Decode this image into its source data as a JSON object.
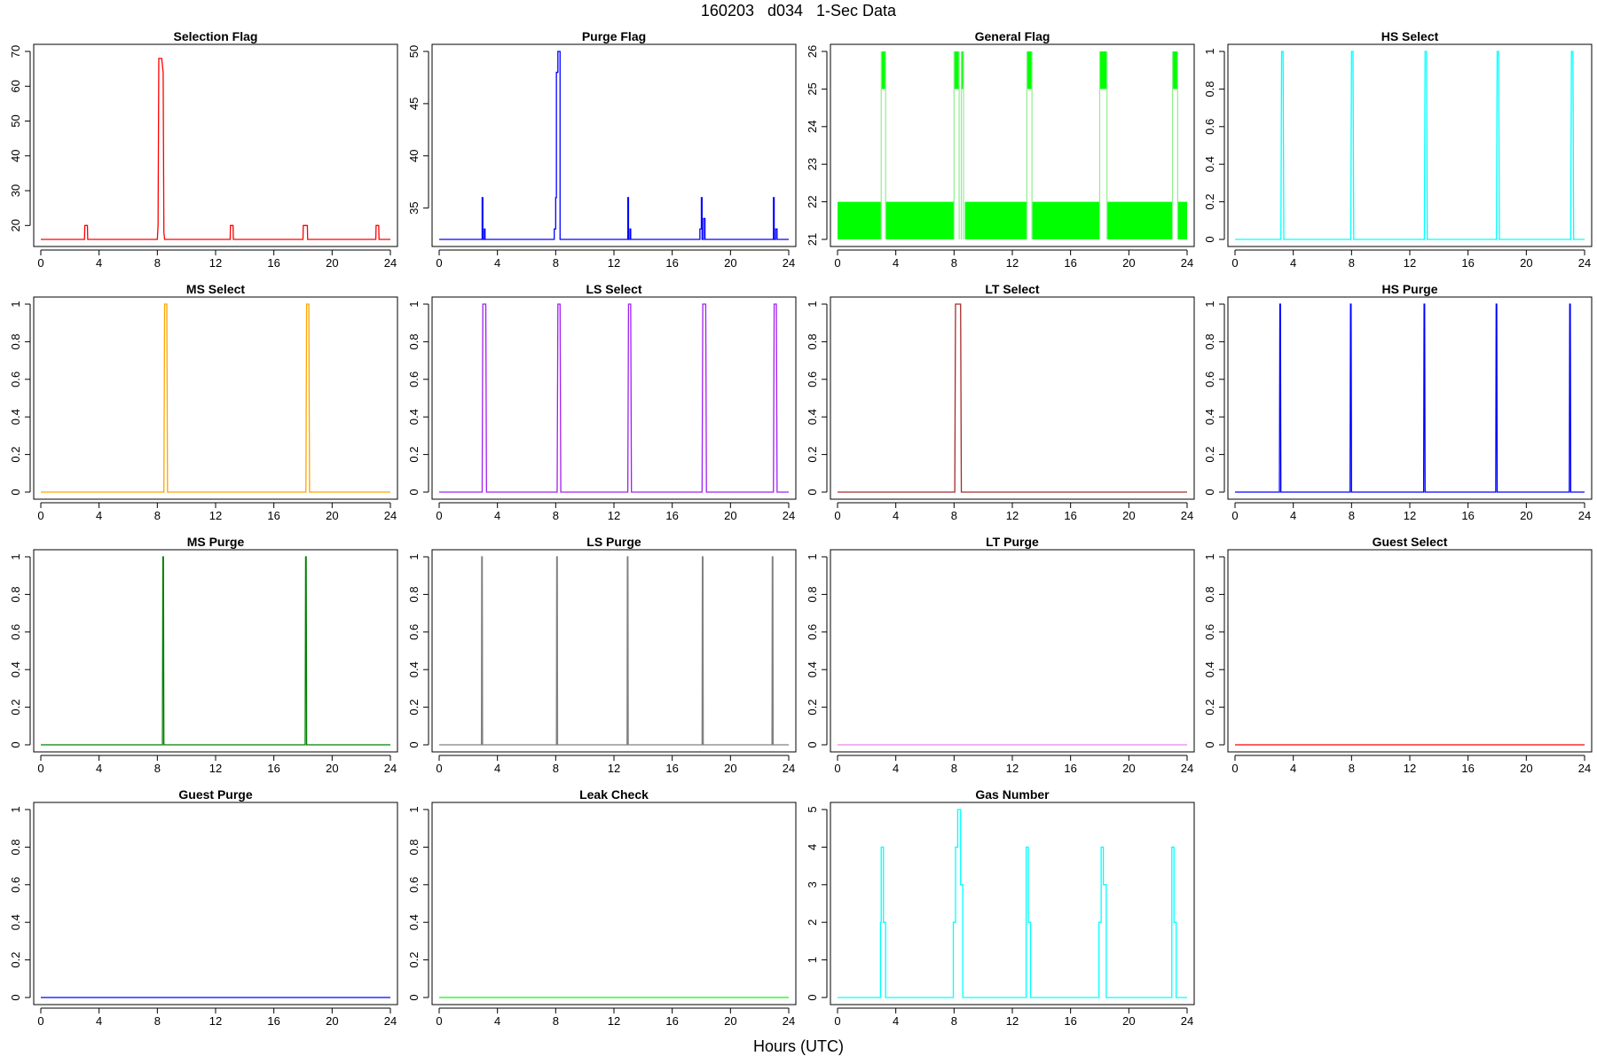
{
  "figure": {
    "title": "160203   d034   1-Sec Data",
    "xlabel": "Hours (UTC)"
  },
  "chart_data": [
    {
      "type": "line",
      "title": "Selection Flag",
      "color": "#ff0000",
      "x": [
        0,
        3,
        3.02,
        3.2,
        3.22,
        8,
        8.05,
        8.1,
        8.3,
        8.4,
        8.45,
        8.5,
        13,
        13.02,
        13.2,
        13.22,
        18,
        18.02,
        18.3,
        18.32,
        23,
        23.02,
        23.2,
        23.22,
        24
      ],
      "y": [
        16,
        16,
        20,
        20,
        16,
        16,
        20,
        68,
        68,
        64,
        18,
        16,
        16,
        20,
        20,
        16,
        16,
        20,
        20,
        16,
        16,
        20,
        20,
        16,
        16
      ],
      "ylim": [
        16,
        70
      ],
      "yticks": [
        20,
        30,
        40,
        50,
        60,
        70
      ],
      "xlim": [
        0,
        24
      ],
      "xticks": [
        0,
        4,
        8,
        12,
        16,
        20,
        24
      ]
    },
    {
      "type": "line",
      "title": "Purge Flag",
      "color": "#0000ff",
      "x": [
        0,
        2.95,
        2.95,
        3.0,
        3.0,
        3.1,
        3.1,
        3.15,
        3.15,
        7.9,
        7.9,
        8.0,
        8.0,
        8.05,
        8.05,
        8.15,
        8.15,
        8.3,
        8.3,
        8.5,
        8.5,
        12.95,
        12.95,
        13.0,
        13.0,
        13.1,
        13.1,
        13.15,
        13.15,
        17.9,
        17.9,
        18.0,
        18.0,
        18.05,
        18.05,
        18.15,
        18.15,
        18.25,
        18.25,
        22.95,
        22.95,
        23.0,
        23.0,
        23.1,
        23.1,
        23.2,
        23.2,
        24
      ],
      "y": [
        32,
        32,
        36,
        36,
        32,
        32,
        33,
        33,
        32,
        32,
        33,
        33,
        36,
        36,
        48,
        48,
        50,
        50,
        32,
        32,
        32,
        32,
        36,
        36,
        32,
        32,
        33,
        33,
        32,
        32,
        33,
        33,
        36,
        36,
        32,
        32,
        34,
        34,
        32,
        32,
        36,
        36,
        32,
        32,
        33,
        33,
        32,
        32
      ],
      "ylim": [
        32,
        50
      ],
      "yticks": [
        35,
        40,
        45,
        50
      ],
      "xlim": [
        0,
        24
      ],
      "xticks": [
        0,
        4,
        8,
        12,
        16,
        20,
        24
      ]
    },
    {
      "type": "area",
      "title": "General Flag",
      "color": "#00ff00",
      "line_color": "#90ee90",
      "blocks": [
        [
          0,
          3
        ],
        [
          3.3,
          8
        ],
        [
          8.75,
          13
        ],
        [
          13.35,
          18
        ],
        [
          18.5,
          23
        ],
        [
          23.35,
          24
        ]
      ],
      "block_range": [
        21,
        22
      ],
      "spikes": [
        [
          3,
          3.3
        ],
        [
          8,
          8.35
        ],
        [
          8.5,
          8.65
        ],
        [
          13,
          13.35
        ],
        [
          18,
          18.5
        ],
        [
          23,
          23.35
        ]
      ],
      "spike_range": [
        25,
        26
      ],
      "spike_base": 21,
      "ylim": [
        21,
        26
      ],
      "yticks": [
        21,
        22,
        23,
        24,
        25,
        26
      ],
      "xlim": [
        0,
        24
      ],
      "xticks": [
        0,
        4,
        8,
        12,
        16,
        20,
        24
      ]
    },
    {
      "type": "line",
      "title": "HS Select",
      "color": "#00ffff",
      "x": [
        0,
        3.15,
        3.2,
        3.3,
        3.35,
        7.95,
        8.0,
        8.1,
        8.15,
        13.0,
        13.05,
        13.15,
        13.2,
        17.95,
        18.0,
        18.1,
        18.15,
        23.05,
        23.1,
        23.2,
        23.25,
        24
      ],
      "y": [
        0,
        0,
        1,
        1,
        0,
        0,
        1,
        1,
        0,
        0,
        1,
        1,
        0,
        0,
        1,
        1,
        0,
        0,
        1,
        1,
        0,
        0
      ],
      "ylim": [
        0,
        1
      ],
      "yticks": [
        0,
        0.2,
        0.4,
        0.6,
        0.8,
        1
      ],
      "xlim": [
        0,
        24
      ],
      "xticks": [
        0,
        4,
        8,
        12,
        16,
        20,
        24
      ]
    },
    {
      "type": "line",
      "title": "MS Select",
      "color": "#ffa500",
      "x": [
        0,
        8.45,
        8.5,
        8.65,
        8.7,
        18.2,
        18.25,
        18.4,
        18.45,
        24
      ],
      "y": [
        0,
        0,
        1,
        1,
        0,
        0,
        1,
        1,
        0,
        0
      ],
      "ylim": [
        0,
        1
      ],
      "yticks": [
        0,
        0.2,
        0.4,
        0.6,
        0.8,
        1
      ],
      "xlim": [
        0,
        24
      ],
      "xticks": [
        0,
        4,
        8,
        12,
        16,
        20,
        24
      ]
    },
    {
      "type": "line",
      "title": "LS Select",
      "color": "#a020f0",
      "x": [
        0,
        2.95,
        3.0,
        3.2,
        3.25,
        8.1,
        8.15,
        8.3,
        8.35,
        12.95,
        13.0,
        13.15,
        13.2,
        18.05,
        18.1,
        18.3,
        18.35,
        22.95,
        23.0,
        23.15,
        23.2,
        24
      ],
      "y": [
        0,
        0,
        1,
        1,
        0,
        0,
        1,
        1,
        0,
        0,
        1,
        1,
        0,
        0,
        1,
        1,
        0,
        0,
        1,
        1,
        0,
        0
      ],
      "ylim": [
        0,
        1
      ],
      "yticks": [
        0,
        0.2,
        0.4,
        0.6,
        0.8,
        1
      ],
      "xlim": [
        0,
        24
      ],
      "xticks": [
        0,
        4,
        8,
        12,
        16,
        20,
        24
      ]
    },
    {
      "type": "line",
      "title": "LT Select",
      "color": "#a52a2a",
      "x": [
        0,
        8.05,
        8.1,
        8.45,
        8.5,
        24
      ],
      "y": [
        0,
        0,
        1,
        1,
        0,
        0
      ],
      "ylim": [
        0,
        1
      ],
      "yticks": [
        0,
        0.2,
        0.4,
        0.6,
        0.8,
        1
      ],
      "xlim": [
        0,
        24
      ],
      "xticks": [
        0,
        4,
        8,
        12,
        16,
        20,
        24
      ]
    },
    {
      "type": "line",
      "title": "HS Purge",
      "color": "#0000ff",
      "x": [
        0,
        3.05,
        3.08,
        3.12,
        3.15,
        7.9,
        7.93,
        7.97,
        8.0,
        12.95,
        12.98,
        13.02,
        13.05,
        17.9,
        17.93,
        17.97,
        18.0,
        22.95,
        22.98,
        23.02,
        23.05,
        24
      ],
      "y": [
        0,
        0,
        1,
        1,
        0,
        0,
        1,
        1,
        0,
        0,
        1,
        1,
        0,
        0,
        1,
        1,
        0,
        0,
        1,
        1,
        0,
        0
      ],
      "ylim": [
        0,
        1
      ],
      "yticks": [
        0,
        0.2,
        0.4,
        0.6,
        0.8,
        1
      ],
      "xlim": [
        0,
        24
      ],
      "xticks": [
        0,
        4,
        8,
        12,
        16,
        20,
        24
      ]
    },
    {
      "type": "line",
      "title": "MS Purge",
      "color": "#008000",
      "x": [
        0,
        8.35,
        8.38,
        8.42,
        8.45,
        18.15,
        18.18,
        18.22,
        18.25,
        24
      ],
      "y": [
        0,
        0,
        1,
        1,
        0,
        0,
        1,
        1,
        0,
        0
      ],
      "ylim": [
        0,
        1
      ],
      "yticks": [
        0,
        0.2,
        0.4,
        0.6,
        0.8,
        1
      ],
      "xlim": [
        0,
        24
      ],
      "xticks": [
        0,
        4,
        8,
        12,
        16,
        20,
        24
      ]
    },
    {
      "type": "line",
      "title": "LS Purge",
      "color": "#808080",
      "x": [
        0,
        2.9,
        2.92,
        2.96,
        2.98,
        8.05,
        8.07,
        8.11,
        8.13,
        12.9,
        12.92,
        12.96,
        12.98,
        18.05,
        18.07,
        18.11,
        18.13,
        22.85,
        22.87,
        22.91,
        22.93,
        24
      ],
      "y": [
        0,
        0,
        1,
        1,
        0,
        0,
        1,
        1,
        0,
        0,
        1,
        1,
        0,
        0,
        1,
        1,
        0,
        0,
        1,
        1,
        0,
        0
      ],
      "ylim": [
        0,
        1
      ],
      "yticks": [
        0,
        0.2,
        0.4,
        0.6,
        0.8,
        1
      ],
      "xlim": [
        0,
        24
      ],
      "xticks": [
        0,
        4,
        8,
        12,
        16,
        20,
        24
      ]
    },
    {
      "type": "line",
      "title": "LT Purge",
      "color": "#ee82ee",
      "x": [
        0,
        24
      ],
      "y": [
        0,
        0
      ],
      "ylim": [
        0,
        1
      ],
      "yticks": [
        0,
        0.2,
        0.4,
        0.6,
        0.8,
        1
      ],
      "xlim": [
        0,
        24
      ],
      "xticks": [
        0,
        4,
        8,
        12,
        16,
        20,
        24
      ]
    },
    {
      "type": "line",
      "title": "Guest Select",
      "color": "#ff0000",
      "x": [
        0,
        24
      ],
      "y": [
        0,
        0
      ],
      "ylim": [
        0,
        1
      ],
      "yticks": [
        0,
        0.2,
        0.4,
        0.6,
        0.8,
        1
      ],
      "xlim": [
        0,
        24
      ],
      "xticks": [
        0,
        4,
        8,
        12,
        16,
        20,
        24
      ]
    },
    {
      "type": "line",
      "title": "Guest Purge",
      "color": "#0000ff",
      "x": [
        0,
        24
      ],
      "y": [
        0,
        0
      ],
      "ylim": [
        0,
        1
      ],
      "yticks": [
        0,
        0.2,
        0.4,
        0.6,
        0.8,
        1
      ],
      "xlim": [
        0,
        24
      ],
      "xticks": [
        0,
        4,
        8,
        12,
        16,
        20,
        24
      ]
    },
    {
      "type": "line",
      "title": "Leak Check",
      "color": "#00ff00",
      "x": [
        0,
        24
      ],
      "y": [
        0,
        0
      ],
      "ylim": [
        0,
        1
      ],
      "yticks": [
        0,
        0.2,
        0.4,
        0.6,
        0.8,
        1
      ],
      "xlim": [
        0,
        24
      ],
      "xticks": [
        0,
        4,
        8,
        12,
        16,
        20,
        24
      ]
    },
    {
      "type": "line",
      "title": "Gas Number",
      "color": "#00ffff",
      "x": [
        0,
        2.95,
        2.95,
        3.0,
        3.0,
        3.15,
        3.15,
        3.3,
        3.3,
        7.95,
        7.95,
        8.1,
        8.1,
        8.25,
        8.25,
        8.45,
        8.45,
        8.6,
        8.6,
        12.95,
        12.95,
        13.1,
        13.1,
        13.25,
        13.25,
        17.95,
        17.95,
        18.1,
        18.1,
        18.25,
        18.25,
        18.45,
        18.45,
        22.95,
        22.95,
        23.1,
        23.1,
        23.25,
        23.25,
        24
      ],
      "y": [
        0,
        0,
        2,
        2,
        4,
        4,
        2,
        2,
        0,
        0,
        2,
        2,
        4,
        4,
        5,
        5,
        3,
        3,
        0,
        0,
        4,
        4,
        2,
        2,
        0,
        0,
        2,
        2,
        4,
        4,
        3,
        3,
        0,
        0,
        4,
        4,
        2,
        2,
        0,
        0
      ],
      "ylim": [
        0,
        5
      ],
      "yticks": [
        0,
        1,
        2,
        3,
        4,
        5
      ],
      "xlim": [
        0,
        24
      ],
      "xticks": [
        0,
        4,
        8,
        12,
        16,
        20,
        24
      ]
    }
  ]
}
